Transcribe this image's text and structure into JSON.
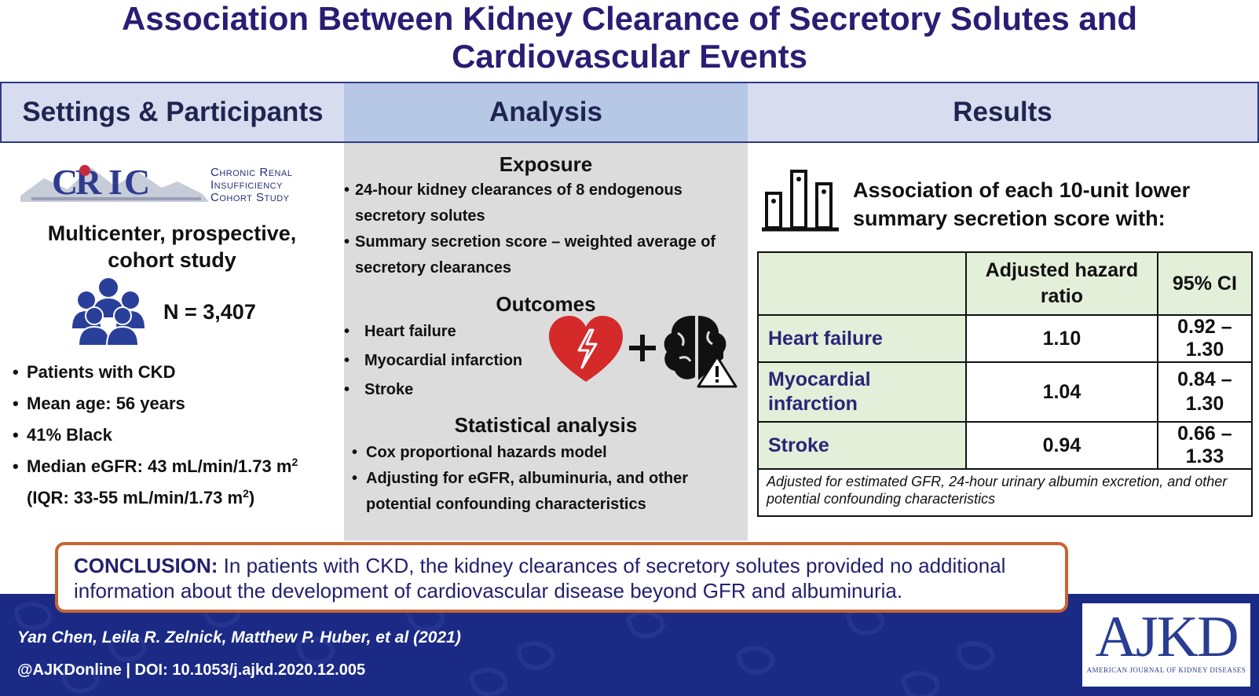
{
  "title": {
    "line1": "Association Between Kidney Clearance of Secretory Solutes and",
    "line2": "Cardiovascular Events"
  },
  "headers": {
    "settings": "Settings & Participants",
    "analysis": "Analysis",
    "results": "Results"
  },
  "settings": {
    "logo_text": {
      "line1": "Chronic Renal",
      "line2": "Insufficiency",
      "line3": "Cohort Study"
    },
    "study_type": {
      "line1": "Multicenter, prospective,",
      "line2": "cohort study"
    },
    "n_count": "N = 3,407",
    "bullets": [
      "Patients with CKD",
      "Mean age: 56 years",
      "41% Black"
    ],
    "egfr_line1": "Median eGFR: 43 mL/min/1.73 m",
    "egfr_line2": "(IQR: 33-55 mL/min/1.73 m",
    "egfr_line2_close": ")",
    "superscript": "2"
  },
  "analysis": {
    "exposure_title": "Exposure",
    "exposure_items": [
      "24-hour kidney clearances of 8 endogenous secretory solutes",
      "Summary secretion score – weighted average of secretory clearances"
    ],
    "outcomes_title": "Outcomes",
    "outcome_items": [
      "Heart failure",
      "Myocardial infarction",
      "Stroke"
    ],
    "stat_title": "Statistical analysis",
    "stat_items": [
      "Cox proportional hazards model",
      "Adjusting for eGFR, albuminuria, and other potential confounding characteristics"
    ]
  },
  "results": {
    "assoc_text": "Association of each 10-unit lower summary secretion score with:",
    "table": {
      "col_hr": "Adjusted hazard ratio",
      "col_ci": "95% CI",
      "rows": [
        {
          "label": "Heart failure",
          "hr": "1.10",
          "ci": "0.92 – 1.30"
        },
        {
          "label": "Myocardial infarction",
          "hr": "1.04",
          "ci": "0.84 – 1.30"
        },
        {
          "label": "Stroke",
          "hr": "0.94",
          "ci": "0.66 – 1.33"
        }
      ]
    },
    "note": "Adjusted for estimated GFR, 24-hour urinary albumin excretion, and other potential confounding characteristics"
  },
  "conclusion": {
    "label": "CONCLUSION:",
    "text": "In patients with CKD, the kidney clearances of secretory solutes provided no additional information about the development of cardiovascular disease beyond GFR and albuminuria."
  },
  "footer": {
    "authors": "Yan Chen, Leila R. Zelnick, Matthew P. Huber, et al  (2021)",
    "doi": "@AJKDonline | DOI: 10.1053/j.ajkd.2020.12.005",
    "journal_logo": "AJKD",
    "journal_name": "AMERICAN JOURNAL OF KIDNEY DISEASES"
  },
  "colors": {
    "title": "#2a1d74",
    "header_light": "#d7dcef",
    "header_mid": "#b7c8e6",
    "analysis_bg": "#dcdcdc",
    "table_label_bg": "#e4efda",
    "footer_bg": "#1b2a85",
    "conclusion_border": "#c86432",
    "heart": "#d42a2a"
  },
  "icons": [
    "cric-logo",
    "people-icon",
    "heart-icon",
    "plus-icon",
    "brain-warning-icon",
    "bar-chart-icon",
    "ajkd-logo"
  ]
}
